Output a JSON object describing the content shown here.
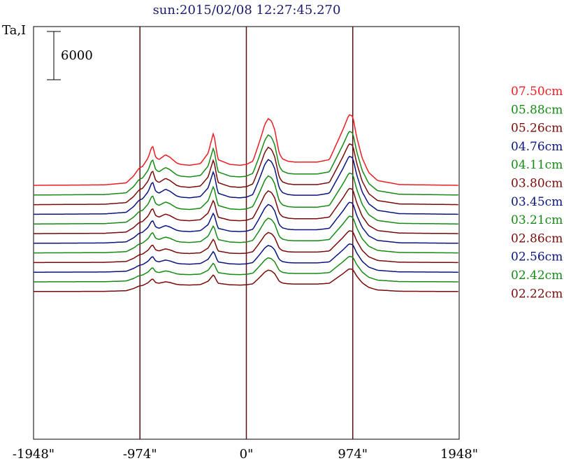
{
  "chart_data": {
    "type": "line",
    "title": "sun:2015/02/08 12:27:45.270",
    "ylabel": "Ta,I",
    "scale_bar_label": "6000",
    "x_ticks": [
      "-1948\"",
      "-974\"",
      "0\"",
      "974\"",
      "1948\""
    ],
    "x_tick_values": [
      -1948,
      -974,
      0,
      974,
      1948
    ],
    "xlim": [
      -1948,
      1948
    ],
    "vertical_lines": [
      -974,
      0,
      974
    ],
    "legend_position": "right",
    "colors": {
      "red": "#ee1c24",
      "green": "#168a16",
      "maroon": "#7a0a0a",
      "navy": "#0a1480",
      "axis": "#000000",
      "title": "#1a1a6e"
    },
    "series": [
      {
        "name": "07.50cm",
        "color": "#ee1c24",
        "baseline": 1200,
        "scale": 1.0
      },
      {
        "name": "05.88cm",
        "color": "#168a16",
        "baseline": 0,
        "scale": 0.9
      },
      {
        "name": "05.26cm",
        "color": "#7a0a0a",
        "baseline": -1200,
        "scale": 0.86
      },
      {
        "name": "04.76cm",
        "color": "#0a1480",
        "baseline": -2400,
        "scale": 0.82
      },
      {
        "name": "04.11cm",
        "color": "#168a16",
        "baseline": -3600,
        "scale": 0.72
      },
      {
        "name": "03.80cm",
        "color": "#7a0a0a",
        "baseline": -4800,
        "scale": 0.64
      },
      {
        "name": "03.45cm",
        "color": "#0a1480",
        "baseline": -6000,
        "scale": 0.58
      },
      {
        "name": "03.21cm",
        "color": "#168a16",
        "baseline": -7200,
        "scale": 0.52
      },
      {
        "name": "02.86cm",
        "color": "#7a0a0a",
        "baseline": -8400,
        "scale": 0.45
      },
      {
        "name": "02.56cm",
        "color": "#0a1480",
        "baseline": -9600,
        "scale": 0.4
      },
      {
        "name": "02.42cm",
        "color": "#168a16",
        "baseline": -10800,
        "scale": 0.36
      },
      {
        "name": "02.22cm",
        "color": "#7a0a0a",
        "baseline": -12000,
        "scale": 0.32
      }
    ],
    "profile_x": [
      -1948,
      -1300,
      -1100,
      -1030,
      -990,
      -974,
      -950,
      -900,
      -860,
      -830,
      -800,
      -740,
      -700,
      -640,
      -600,
      -520,
      -420,
      -350,
      -300,
      -260,
      -150,
      -60,
      0,
      60,
      120,
      170,
      200,
      230,
      260,
      300,
      330,
      380,
      440,
      650,
      760,
      880,
      940,
      974,
      1010,
      1060,
      1120,
      1200,
      1400,
      1948
    ],
    "profile_y": [
      0,
      60,
      300,
      1200,
      2000,
      2200,
      2350,
      3400,
      5000,
      3500,
      3200,
      3800,
      3500,
      2800,
      2600,
      2500,
      2700,
      4000,
      6600,
      3200,
      2600,
      2500,
      2600,
      3000,
      5400,
      7600,
      8300,
      8000,
      6900,
      4000,
      3300,
      3000,
      2900,
      2900,
      3200,
      6800,
      8800,
      8600,
      6000,
      3400,
      1600,
      600,
      100,
      0
    ]
  }
}
